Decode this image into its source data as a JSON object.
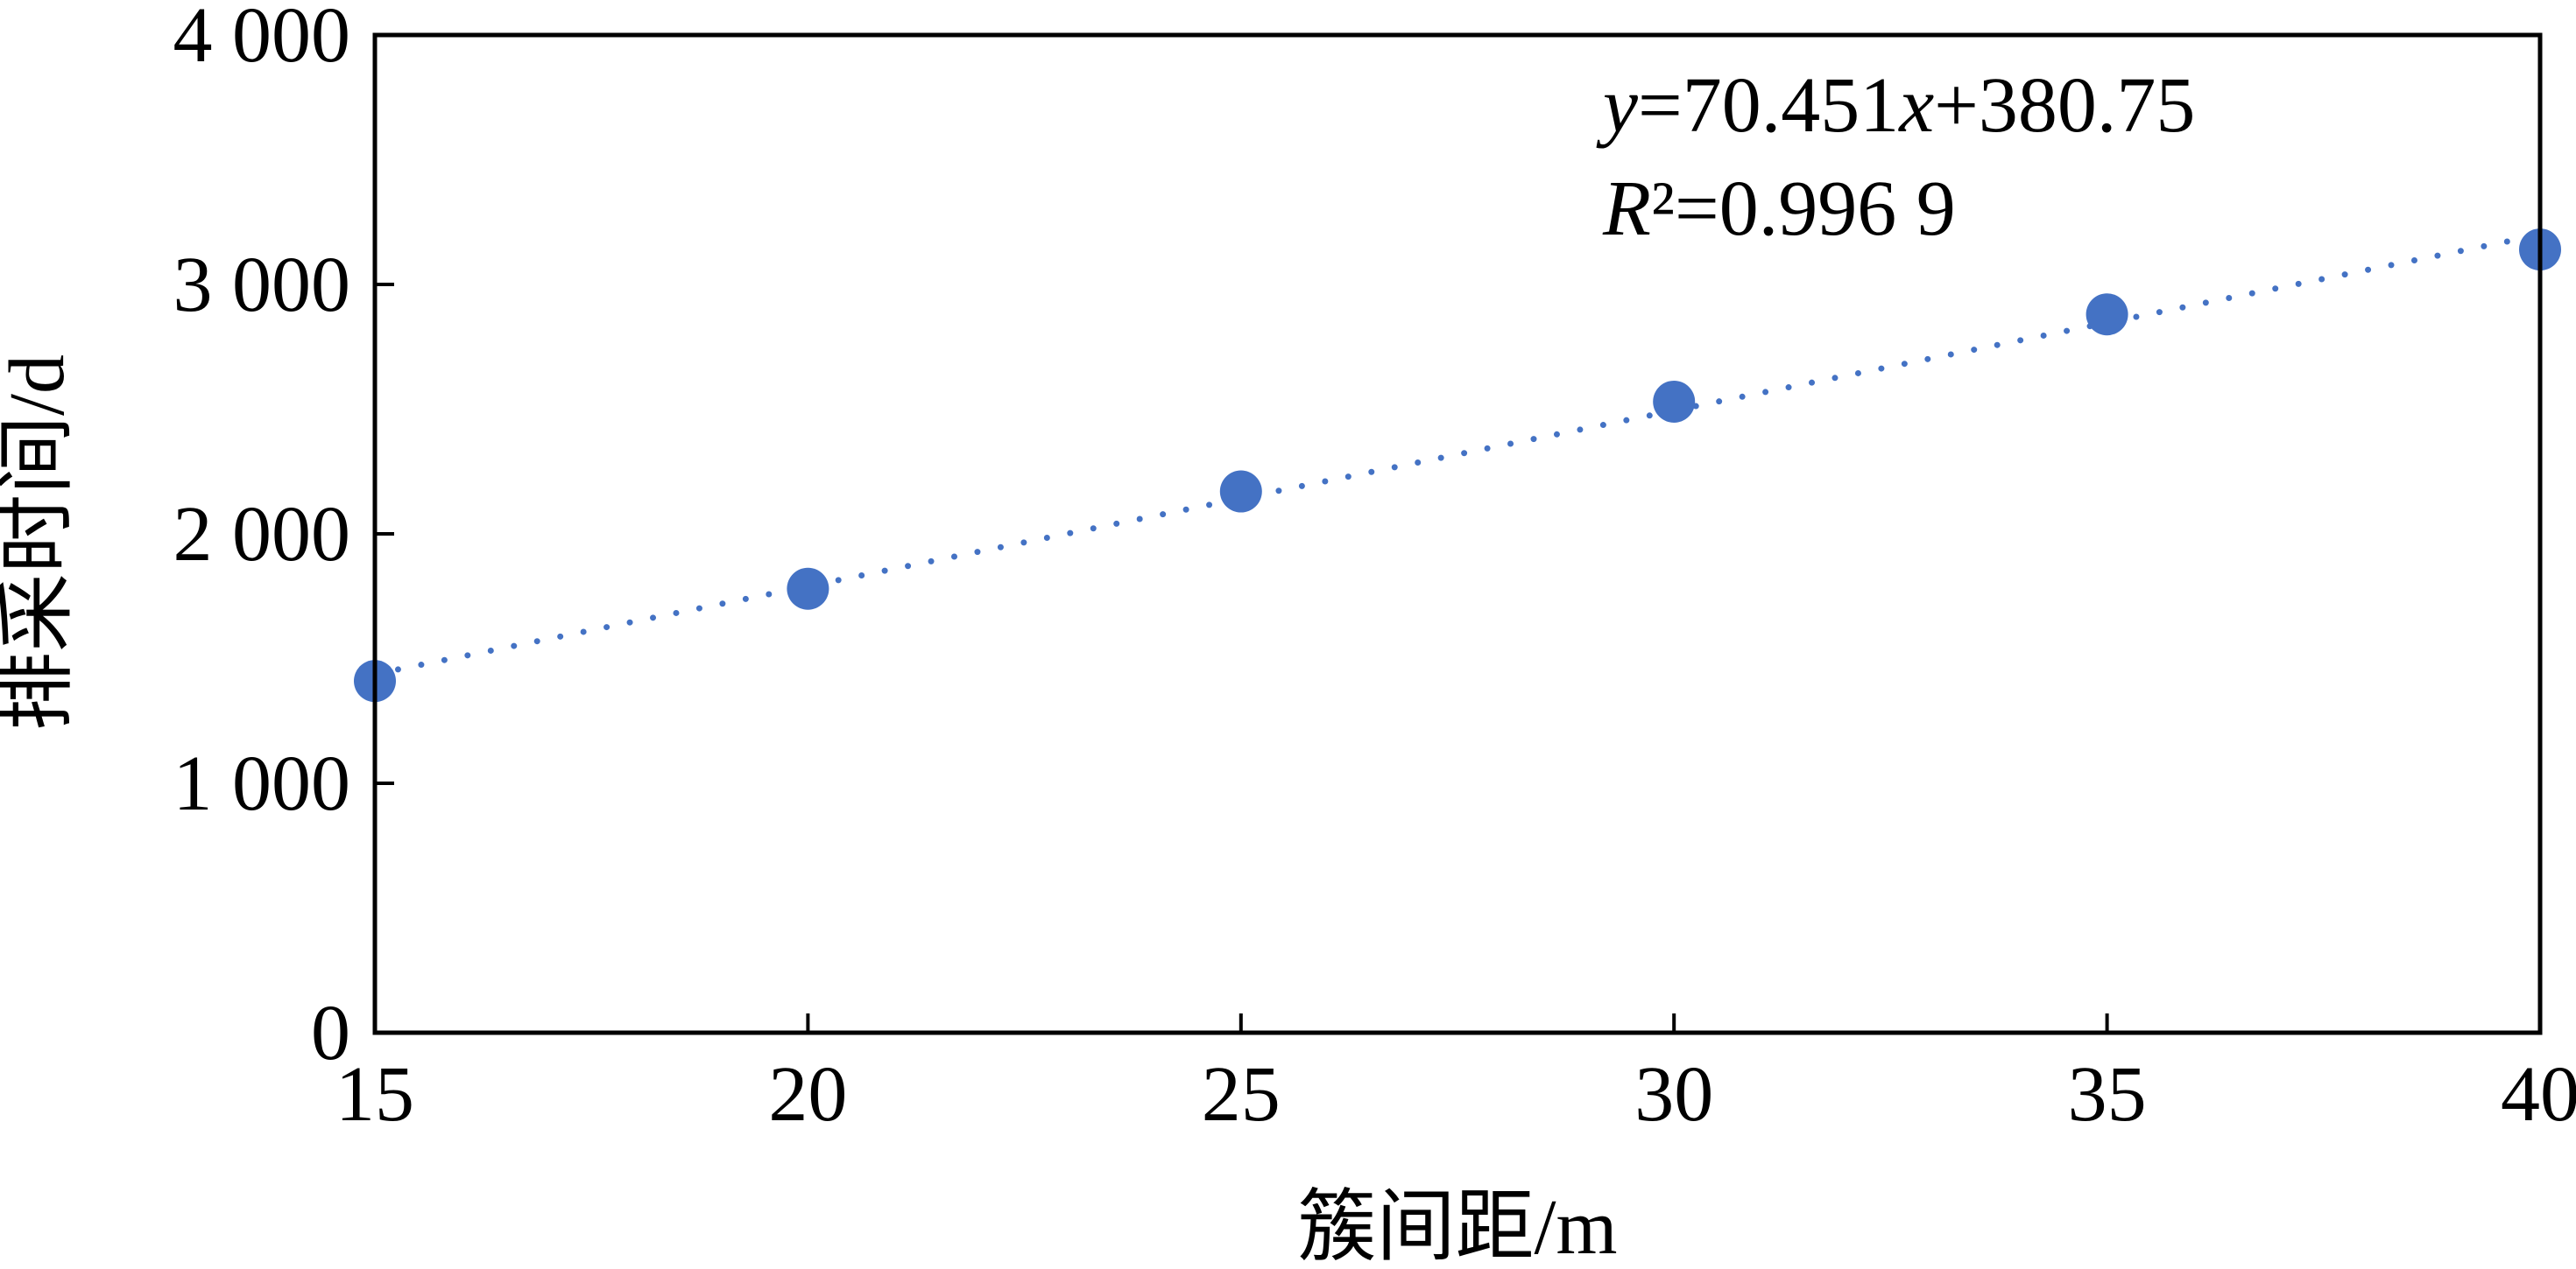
{
  "chart_data": {
    "type": "scatter",
    "xlabel": "簇间距/m",
    "ylabel": "排采时间/d",
    "xlim": [
      15,
      40
    ],
    "ylim": [
      0,
      4000
    ],
    "x_ticks": [
      15,
      20,
      25,
      30,
      35,
      40
    ],
    "x_tick_labels": [
      "15",
      "20",
      "25",
      "30",
      "35",
      "40"
    ],
    "y_ticks": [
      0,
      1000,
      2000,
      3000,
      4000
    ],
    "y_tick_labels": [
      "0",
      "1 000",
      "2 000",
      "3 000",
      "4 000"
    ],
    "grid": false,
    "series": [
      {
        "x": [
          15,
          20,
          25,
          30,
          35,
          40
        ],
        "y": [
          1410,
          1780,
          2170,
          2530,
          2880,
          3140
        ],
        "color": "#4472C4"
      }
    ],
    "trendline": {
      "slope": 70.451,
      "intercept": 380.75,
      "style": "dotted",
      "color": "#4472C4"
    },
    "annotation": {
      "eq_y": "y",
      "eq_mid": "=70.451",
      "eq_x": "x",
      "eq_tail": "+380.75",
      "r_label": "R",
      "r_rest": "²=0.996 9"
    }
  }
}
